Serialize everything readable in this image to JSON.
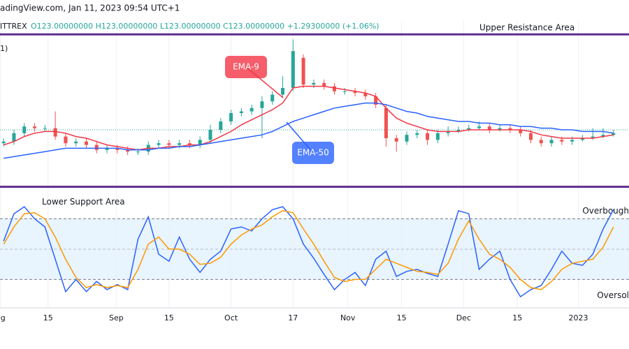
{
  "header": {
    "source": "adingView.com, Jan 11, 2023 09:54 UTC+1",
    "symbol": "ITTREX",
    "ohlc": "O123.00000000 H123.00000000 L123.00000000 C123.00000000 +1.29300000 (+1.06%)",
    "pane_label": "1)"
  },
  "chart_data": [
    {
      "type": "candlestick",
      "xlim": [
        -0.35,
        60.5
      ],
      "ylim": [
        0,
        100
      ],
      "up_color": "#26a69a",
      "down_color": "#ef5350",
      "open": [
        27,
        28,
        33,
        37,
        36,
        36,
        31,
        27,
        28,
        26,
        23,
        24,
        23,
        22,
        22,
        26,
        27,
        26,
        27,
        26,
        29,
        35,
        40,
        45,
        46,
        48,
        52,
        56,
        60,
        78,
        62,
        63,
        61,
        58,
        58,
        57,
        55,
        48,
        30,
        28,
        32,
        33,
        29,
        33,
        34,
        35,
        36,
        37,
        35,
        36,
        35,
        33,
        29,
        27,
        29,
        28,
        29,
        30,
        31,
        32
      ],
      "high": [
        30,
        35,
        39,
        39,
        38,
        46,
        33,
        30,
        30,
        28,
        26,
        26,
        25,
        24,
        28,
        29,
        29,
        29,
        29,
        31,
        38,
        42,
        47,
        48,
        50,
        55,
        58,
        67,
        89,
        80,
        65,
        65,
        63,
        60,
        60,
        59,
        57,
        50,
        32,
        34,
        35,
        35,
        35,
        37,
        37,
        38,
        40,
        39,
        38,
        38,
        37,
        35,
        31,
        31,
        31,
        31,
        32,
        36,
        36,
        35
      ],
      "low": [
        25,
        26,
        31,
        34,
        34,
        29,
        25,
        25,
        24,
        21,
        21,
        21,
        20,
        20,
        20,
        24,
        24,
        24,
        24,
        24,
        27,
        33,
        38,
        43,
        44,
        30,
        50,
        54,
        58,
        60,
        60,
        59,
        56,
        56,
        55,
        53,
        48,
        25,
        22,
        26,
        30,
        26,
        27,
        31,
        33,
        34,
        35,
        33,
        34,
        33,
        31,
        27,
        25,
        25,
        26,
        26,
        28,
        29,
        30,
        31
      ],
      "close": [
        28,
        33,
        37,
        36,
        36,
        31,
        27,
        28,
        26,
        23,
        24,
        23,
        22,
        22,
        26,
        27,
        26,
        27,
        26,
        29,
        35,
        40,
        45,
        46,
        48,
        52,
        56,
        60,
        82,
        62,
        63,
        61,
        58,
        58,
        57,
        55,
        50,
        30,
        28,
        32,
        33,
        29,
        33,
        34,
        35,
        36,
        37,
        35,
        36,
        35,
        33,
        29,
        27,
        29,
        28,
        29,
        30,
        31,
        32,
        33
      ],
      "series": [
        {
          "name": "EMA-9",
          "color": "#f23645",
          "values": [
            26,
            28,
            31,
            33,
            34,
            34,
            33,
            31,
            30,
            28,
            26,
            25,
            24,
            23,
            24,
            24,
            25,
            25,
            26,
            26,
            28,
            31,
            34,
            38,
            41,
            44,
            47,
            51,
            60,
            61,
            61,
            61,
            60,
            59,
            58,
            57,
            55,
            48,
            42,
            39,
            37,
            35,
            34,
            34,
            34,
            35,
            35,
            35,
            35,
            35,
            35,
            34,
            32,
            31,
            30,
            30,
            30,
            30,
            31,
            32
          ]
        },
        {
          "name": "EMA-50",
          "color": "#2962ff",
          "values": [
            18,
            19,
            20,
            21,
            22,
            23,
            24,
            24,
            24,
            24,
            24,
            24,
            23,
            23,
            23,
            24,
            24,
            25,
            25,
            26,
            27,
            28,
            29,
            30,
            31,
            32,
            34,
            37,
            40,
            42,
            44,
            46,
            48,
            49,
            50,
            51,
            51,
            50,
            48,
            46,
            45,
            43,
            42,
            41,
            40,
            40,
            39,
            39,
            38,
            38,
            37,
            37,
            36,
            36,
            35,
            35,
            34,
            34,
            34,
            33
          ]
        }
      ],
      "levels": [
        {
          "label": "Upper Resistance Area",
          "value": 92
        },
        {
          "label": "Lower Support Area",
          "value": 1
        }
      ],
      "level_color": "#5e2d91",
      "price_line": 35
    },
    {
      "type": "line",
      "xlim": [
        -0.35,
        60.5
      ],
      "ylim": [
        -8,
        110
      ],
      "xticks": [
        {
          "value": -0.3,
          "label": "g"
        },
        {
          "value": 4.3,
          "label": "15"
        },
        {
          "value": 10.9,
          "label": "Sep"
        },
        {
          "value": 16,
          "label": "15"
        },
        {
          "value": 22,
          "label": "Oct"
        },
        {
          "value": 28,
          "label": "17"
        },
        {
          "value": 33.3,
          "label": "Nov"
        },
        {
          "value": 38.5,
          "label": "15"
        },
        {
          "value": 44.5,
          "label": "Dec"
        },
        {
          "value": 49.7,
          "label": "15"
        },
        {
          "value": 55.6,
          "label": "2023"
        }
      ],
      "series": [
        {
          "color": "#2962ff",
          "values": [
            58,
            85,
            92,
            80,
            72,
            40,
            8,
            20,
            8,
            18,
            10,
            15,
            10,
            60,
            82,
            45,
            38,
            62,
            40,
            27,
            40,
            48,
            70,
            72,
            68,
            80,
            89,
            92,
            80,
            55,
            41,
            25,
            10,
            20,
            27,
            14,
            40,
            48,
            23,
            28,
            30,
            26,
            23,
            55,
            88,
            85,
            30,
            40,
            48,
            20,
            3,
            10,
            14,
            30,
            48,
            36,
            34,
            45,
            70,
            89
          ]
        },
        {
          "color": "#ff9800",
          "values": [
            55,
            72,
            85,
            86,
            80,
            62,
            40,
            22,
            12,
            15,
            12,
            14,
            12,
            30,
            55,
            62,
            50,
            50,
            45,
            35,
            36,
            42,
            55,
            64,
            70,
            74,
            82,
            88,
            86,
            70,
            55,
            38,
            22,
            18,
            20,
            20,
            30,
            40,
            36,
            32,
            28,
            27,
            25,
            36,
            60,
            78,
            60,
            45,
            40,
            32,
            20,
            12,
            10,
            18,
            30,
            36,
            38,
            40,
            52,
            72
          ]
        }
      ],
      "overbought": {
        "value": 80,
        "label": "Overbough"
      },
      "oversold": {
        "value": 20,
        "label": "Oversol"
      },
      "middle": 50,
      "band_color": "#2196f3"
    }
  ]
}
